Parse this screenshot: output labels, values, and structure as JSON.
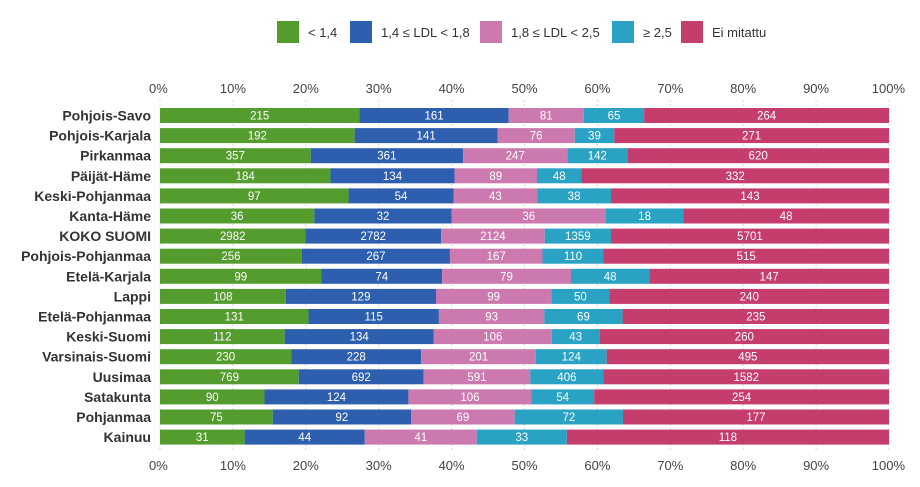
{
  "chart_data": {
    "type": "bar",
    "orientation": "horizontal",
    "stacked": "percent",
    "title": "",
    "xlabel": "",
    "ylabel": "",
    "xlim": [
      0,
      100
    ],
    "tick_labels": [
      "0%",
      "10%",
      "20%",
      "30%",
      "40%",
      "50%",
      "60%",
      "70%",
      "80%",
      "90%",
      "100%"
    ],
    "tick_values": [
      0,
      10,
      20,
      30,
      40,
      50,
      60,
      70,
      80,
      90,
      100
    ],
    "legend_position": "top",
    "categories": [
      "Pohjois-Savo",
      "Pohjois-Karjala",
      "Pirkanmaa",
      "Päijät-Häme",
      "Keski-Pohjanmaa",
      "Kanta-Häme",
      "KOKO SUOMI",
      "Pohjois-Pohjanmaa",
      "Etelä-Karjala",
      "Lappi",
      "Etelä-Pohjanmaa",
      "Keski-Suomi",
      "Varsinais-Suomi",
      "Uusimaa",
      "Satakunta",
      "Pohjanmaa",
      "Kainuu"
    ],
    "series": [
      {
        "name": "< 1,4",
        "color": "#559c2f",
        "values": [
          215,
          192,
          357,
          184,
          97,
          36,
          2982,
          256,
          99,
          108,
          131,
          112,
          230,
          769,
          90,
          75,
          31
        ]
      },
      {
        "name": "1,4 ≤ LDL < 1,8",
        "color": "#2d5fae",
        "values": [
          161,
          141,
          361,
          134,
          54,
          32,
          2782,
          267,
          74,
          129,
          115,
          134,
          228,
          692,
          124,
          92,
          44
        ]
      },
      {
        "name": "1,8 ≤ LDL < 2,5",
        "color": "#cc79b0",
        "values": [
          81,
          76,
          247,
          89,
          43,
          36,
          2124,
          167,
          79,
          99,
          93,
          106,
          201,
          591,
          106,
          69,
          41
        ]
      },
      {
        "name": "≥ 2,5",
        "color": "#2aa2c4",
        "values": [
          65,
          39,
          142,
          48,
          38,
          18,
          1359,
          110,
          48,
          50,
          69,
          43,
          124,
          406,
          54,
          72,
          33
        ]
      },
      {
        "name": "Ei mitattu",
        "color": "#c53d6c",
        "values": [
          264,
          271,
          620,
          332,
          143,
          48,
          5701,
          515,
          147,
          240,
          235,
          260,
          495,
          1582,
          254,
          177,
          118
        ]
      }
    ]
  }
}
